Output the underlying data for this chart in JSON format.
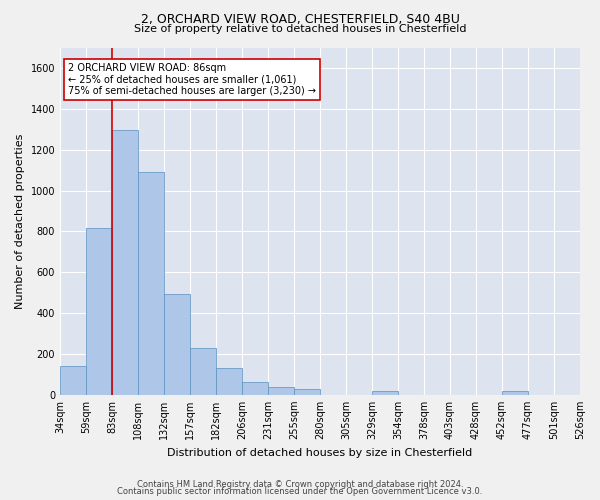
{
  "title1": "2, ORCHARD VIEW ROAD, CHESTERFIELD, S40 4BU",
  "title2": "Size of property relative to detached houses in Chesterfield",
  "xlabel": "Distribution of detached houses by size in Chesterfield",
  "ylabel": "Number of detached properties",
  "footer1": "Contains HM Land Registry data © Crown copyright and database right 2024.",
  "footer2": "Contains public sector information licensed under the Open Government Licence v3.0.",
  "bar_values": [
    140,
    815,
    1295,
    1090,
    495,
    230,
    130,
    65,
    40,
    28,
    0,
    0,
    18,
    0,
    0,
    0,
    0,
    18,
    0,
    0
  ],
  "categories": [
    "34sqm",
    "59sqm",
    "83sqm",
    "108sqm",
    "132sqm",
    "157sqm",
    "182sqm",
    "206sqm",
    "231sqm",
    "255sqm",
    "280sqm",
    "305sqm",
    "329sqm",
    "354sqm",
    "378sqm",
    "403sqm",
    "428sqm",
    "452sqm",
    "477sqm",
    "501sqm",
    "526sqm"
  ],
  "bar_color": "#aec6e8",
  "bar_edge_color": "#5a8fc0",
  "annotation_box_text": "2 ORCHARD VIEW ROAD: 86sqm\n← 25% of detached houses are smaller (1,061)\n75% of semi-detached houses are larger (3,230) →",
  "annotation_box_color": "#ffffff",
  "annotation_box_edge_color": "#cc0000",
  "vline_x_index": 2.0,
  "ylim": [
    0,
    1700
  ],
  "yticks": [
    0,
    200,
    400,
    600,
    800,
    1000,
    1200,
    1400,
    1600
  ],
  "background_color": "#dde4f0",
  "fig_background_color": "#f0f0f0",
  "grid_color": "#ffffff",
  "title1_fontsize": 9,
  "title2_fontsize": 8,
  "ylabel_fontsize": 8,
  "xlabel_fontsize": 8,
  "tick_fontsize": 7,
  "footer_fontsize": 6
}
